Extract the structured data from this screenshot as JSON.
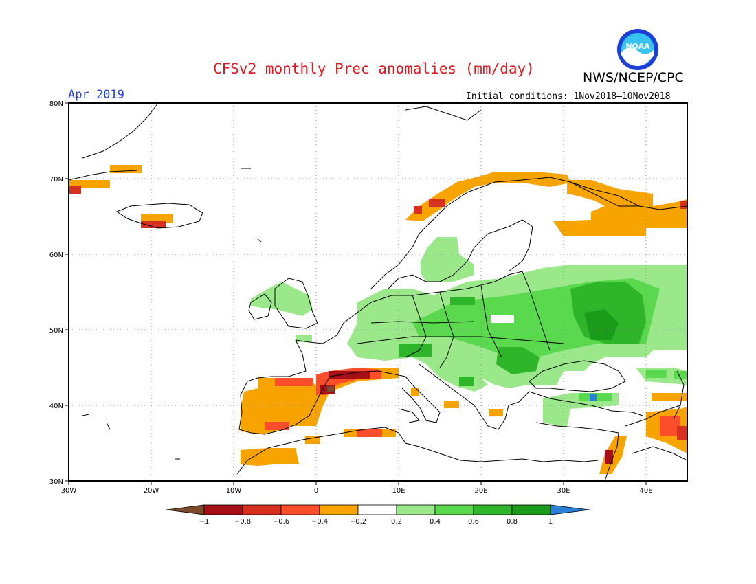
{
  "header": {
    "title": "CFSv2 monthly Prec anomalies (mm/day)",
    "agency": "NWS/NCEP/CPC",
    "month": "Apr 2019",
    "initial_conditions": "Initial conditions: 1Nov2018–10Nov2018"
  },
  "logo": {
    "text": "NOAA",
    "icon": "noaa-logo"
  },
  "axes": {
    "lat_labels": [
      "80N",
      "70N",
      "60N",
      "50N",
      "40N",
      "30N"
    ],
    "lon_labels": [
      "30W",
      "20W",
      "10W",
      "0",
      "10E",
      "20E",
      "30E",
      "40E"
    ]
  },
  "colorbar": {
    "tick_labels": [
      "−1",
      "−0.8",
      "−0.6",
      "−0.4",
      "−0.2",
      "0.2",
      "0.4",
      "0.6",
      "0.8",
      "1"
    ],
    "colors": [
      "#7a4a2a",
      "#a50f15",
      "#d7301f",
      "#fc4e2a",
      "#f7a400",
      "#ffffff",
      "#9be88a",
      "#5ad84e",
      "#2fb52a",
      "#1a9c1a",
      "#2a7fd9"
    ]
  },
  "palette": {
    "land_outline": "#000000",
    "grid": "#888888",
    "neg_orange": "#f7a400",
    "neg_redorange": "#fc4e2a",
    "neg_red": "#d7301f",
    "neg_darkred": "#a50f15",
    "neg_brown": "#7a4a2a",
    "pos_light": "#9be88a",
    "pos_mid": "#5ad84e",
    "pos_dark": "#2fb52a",
    "pos_darker": "#1a9c1a",
    "pos_blue": "#2a7fd9"
  }
}
